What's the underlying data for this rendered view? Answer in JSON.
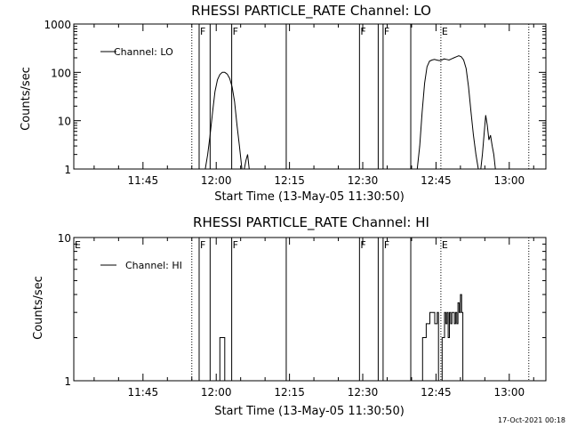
{
  "footer": {
    "timestamp": "17-Oct-2021 00:18"
  },
  "chart_data": [
    {
      "type": "line",
      "title": "RHESSI PARTICLE_RATE Channel: LO",
      "xlabel": "Start Time (13-May-05 11:30:50)",
      "ylabel": "Counts/sec",
      "yscale": "log",
      "xlim": [
        "11:30:50",
        "13:07:30"
      ],
      "ylim": [
        1,
        1000
      ],
      "xticks": [
        "11:45",
        "12:00",
        "12:15",
        "12:30",
        "12:45",
        "13:00"
      ],
      "yticks": [
        "1",
        "10",
        "100",
        "1000"
      ],
      "legend": {
        "position": "top-left",
        "entries": [
          "Channel: LO"
        ]
      },
      "markers": [
        {
          "time": "11:55:00",
          "label": "",
          "style": "dotted"
        },
        {
          "time": "11:56:30",
          "label": "F",
          "style": "solid"
        },
        {
          "time": "11:58:45",
          "label": "",
          "style": "solid"
        },
        {
          "time": "12:03:10",
          "label": "F",
          "style": "solid"
        },
        {
          "time": "12:14:20",
          "label": "",
          "style": "solid"
        },
        {
          "time": "12:29:20",
          "label": "F",
          "style": "solid"
        },
        {
          "time": "12:33:10",
          "label": "",
          "style": "solid"
        },
        {
          "time": "12:34:10",
          "label": "F",
          "style": "solid"
        },
        {
          "time": "12:39:50",
          "label": "",
          "style": "solid"
        },
        {
          "time": "12:46:00",
          "label": "E",
          "style": "dotted"
        },
        {
          "time": "13:04:00",
          "label": "",
          "style": "dotted"
        }
      ],
      "series": [
        {
          "name": "Channel: LO",
          "segments": [
            [
              [
                "11:57:45",
                1
              ],
              [
                "11:58:15",
                2
              ],
              [
                "11:58:45",
                5
              ],
              [
                "11:59:15",
                15
              ],
              [
                "11:59:45",
                40
              ],
              [
                "12:00:15",
                70
              ],
              [
                "12:00:45",
                90
              ],
              [
                "12:01:15",
                100
              ],
              [
                "12:01:45",
                100
              ],
              [
                "12:02:15",
                92
              ],
              [
                "12:02:45",
                75
              ],
              [
                "12:03:15",
                50
              ],
              [
                "12:03:45",
                25
              ],
              [
                "12:04:15",
                8
              ],
              [
                "12:04:45",
                3
              ],
              [
                "12:05:15",
                1
              ]
            ],
            [
              [
                "12:05:45",
                1
              ],
              [
                "12:06:05",
                1.5
              ],
              [
                "12:06:25",
                2
              ],
              [
                "12:06:45",
                1
              ]
            ],
            [
              [
                "12:41:10",
                1
              ],
              [
                "12:41:40",
                3
              ],
              [
                "12:42:10",
                15
              ],
              [
                "12:42:40",
                60
              ],
              [
                "12:43:10",
                130
              ],
              [
                "12:43:40",
                170
              ],
              [
                "12:44:10",
                180
              ],
              [
                "12:44:40",
                185
              ],
              [
                "12:45:10",
                180
              ],
              [
                "12:45:40",
                175
              ],
              [
                "12:46:10",
                180
              ],
              [
                "12:46:40",
                190
              ],
              [
                "12:47:10",
                185
              ],
              [
                "12:47:40",
                180
              ],
              [
                "12:48:10",
                190
              ],
              [
                "12:48:40",
                200
              ],
              [
                "12:49:10",
                210
              ],
              [
                "12:49:40",
                220
              ],
              [
                "12:50:10",
                210
              ],
              [
                "12:50:40",
                180
              ],
              [
                "12:51:10",
                120
              ],
              [
                "12:51:40",
                50
              ],
              [
                "12:52:10",
                15
              ],
              [
                "12:52:40",
                5
              ],
              [
                "12:53:10",
                2
              ],
              [
                "12:53:40",
                1
              ]
            ],
            [
              [
                "12:54:10",
                1
              ],
              [
                "12:54:30",
                2
              ],
              [
                "12:54:50",
                5
              ],
              [
                "12:55:10",
                13
              ],
              [
                "12:55:30",
                8
              ],
              [
                "12:55:50",
                4
              ],
              [
                "12:56:10",
                5
              ],
              [
                "12:56:30",
                3
              ],
              [
                "12:56:50",
                2
              ],
              [
                "12:57:10",
                1
              ]
            ]
          ]
        }
      ]
    },
    {
      "type": "line",
      "title": "RHESSI PARTICLE_RATE Channel: HI",
      "xlabel": "Start Time (13-May-05 11:30:50)",
      "ylabel": "Counts/sec",
      "yscale": "log",
      "xlim": [
        "11:30:50",
        "13:07:30"
      ],
      "ylim": [
        1,
        10
      ],
      "xticks": [
        "11:45",
        "12:00",
        "12:15",
        "12:30",
        "12:45",
        "13:00"
      ],
      "yticks": [
        "1",
        "10"
      ],
      "legend": {
        "position": "top-left",
        "entries": [
          "Channel: HI"
        ]
      },
      "markers": [
        {
          "time": "11:30:50",
          "label": "E",
          "style": "dotted"
        },
        {
          "time": "11:55:00",
          "label": "",
          "style": "dotted"
        },
        {
          "time": "11:56:30",
          "label": "F",
          "style": "solid"
        },
        {
          "time": "11:58:45",
          "label": "",
          "style": "solid"
        },
        {
          "time": "12:03:10",
          "label": "F",
          "style": "solid"
        },
        {
          "time": "12:14:20",
          "label": "",
          "style": "solid"
        },
        {
          "time": "12:29:20",
          "label": "F",
          "style": "solid"
        },
        {
          "time": "12:33:10",
          "label": "",
          "style": "solid"
        },
        {
          "time": "12:34:10",
          "label": "F",
          "style": "solid"
        },
        {
          "time": "12:39:50",
          "label": "",
          "style": "solid"
        },
        {
          "time": "12:46:00",
          "label": "E",
          "style": "dotted"
        },
        {
          "time": "13:04:00",
          "label": "",
          "style": "dotted"
        }
      ],
      "series": [
        {
          "name": "Channel: HI",
          "steps": [
            [
              [
                "12:00:30",
                1
              ],
              [
                "12:00:45",
                2
              ],
              [
                "12:01:30",
                2
              ],
              [
                "12:01:45",
                1
              ]
            ],
            [
              [
                "12:42:00",
                1
              ],
              [
                "12:42:15",
                2
              ],
              [
                "12:42:45",
                2
              ],
              [
                "12:43:00",
                2.5
              ],
              [
                "12:43:30",
                2.5
              ],
              [
                "12:43:45",
                3
              ],
              [
                "12:44:30",
                3
              ],
              [
                "12:44:45",
                2.5
              ],
              [
                "12:45:00",
                2.5
              ],
              [
                "12:45:15",
                3
              ],
              [
                "12:45:30",
                1
              ]
            ],
            [
              [
                "12:46:00",
                1
              ],
              [
                "12:46:15",
                2
              ],
              [
                "12:46:30",
                2
              ],
              [
                "12:46:45",
                3
              ],
              [
                "12:47:00",
                2.5
              ],
              [
                "12:47:15",
                3
              ],
              [
                "12:47:30",
                2
              ],
              [
                "12:47:45",
                3
              ],
              [
                "12:48:00",
                2.5
              ],
              [
                "12:48:15",
                3
              ],
              [
                "12:48:30",
                3
              ],
              [
                "12:48:45",
                2.5
              ],
              [
                "12:49:00",
                3
              ],
              [
                "12:49:15",
                2.5
              ],
              [
                "12:49:30",
                3.5
              ],
              [
                "12:49:45",
                3
              ],
              [
                "12:50:00",
                4
              ],
              [
                "12:50:15",
                3
              ],
              [
                "12:50:30",
                1
              ]
            ]
          ]
        }
      ]
    }
  ]
}
